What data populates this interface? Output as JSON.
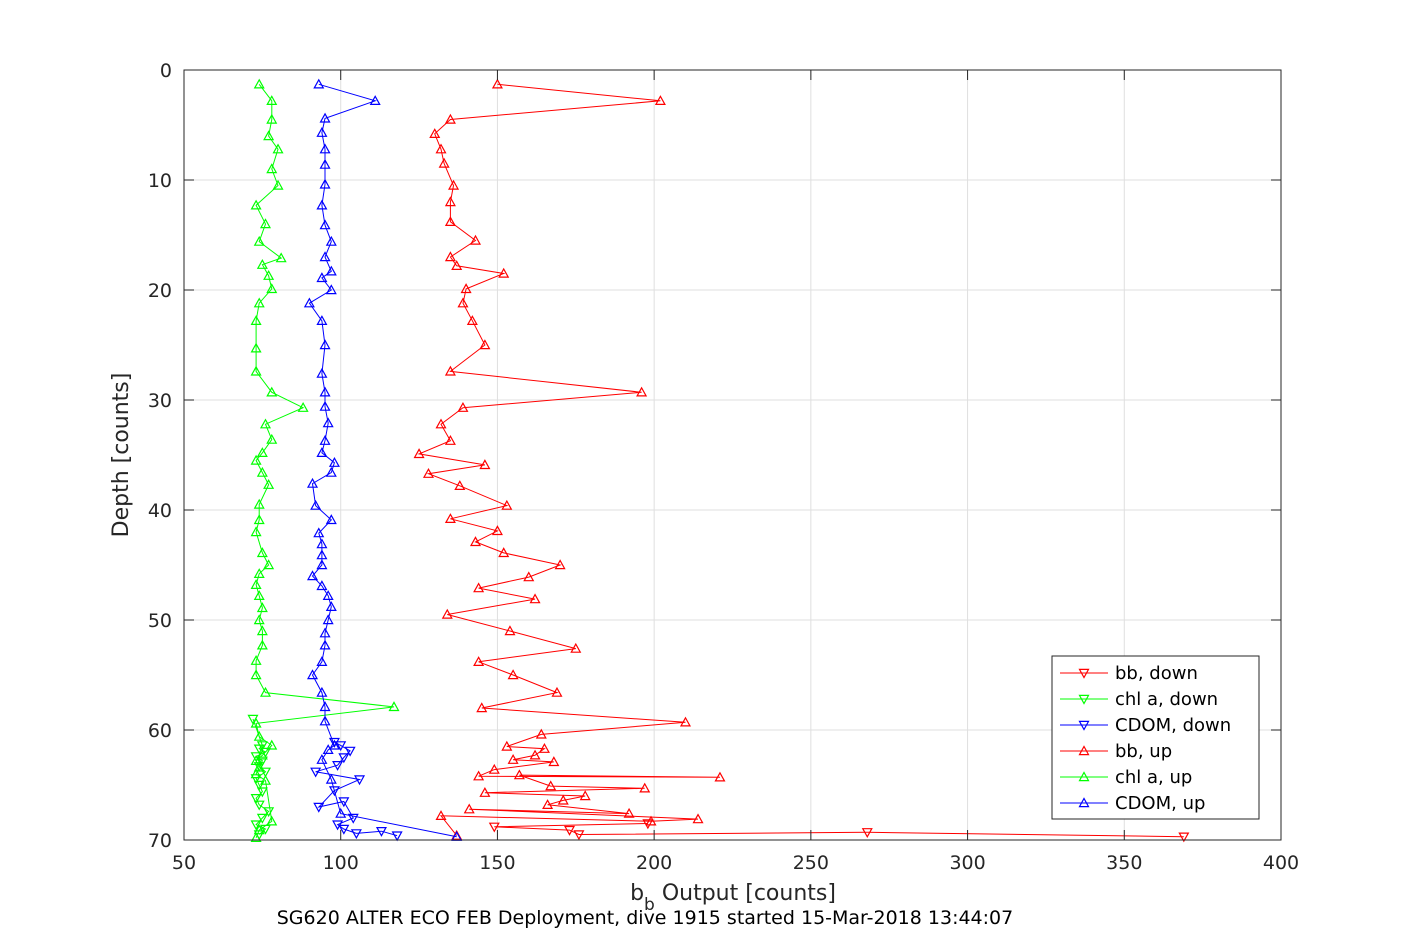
{
  "chart_data": {
    "type": "line",
    "caption": "SG620 ALTER ECO FEB Deployment, dive 1915 started 15-Mar-2018 13:44:07",
    "xlabel_main": "b",
    "xlabel_sub": "b",
    "xlabel_rest": " Output [counts]",
    "ylabel": "Depth [counts]",
    "xlim": [
      50,
      400
    ],
    "ylim": [
      0,
      70
    ],
    "y_reversed": true,
    "grid": true,
    "legend_position": "lower-right",
    "x_ticks": [
      "50",
      "100",
      "150",
      "200",
      "250",
      "300",
      "350",
      "400"
    ],
    "y_ticks": [
      "0",
      "10",
      "20",
      "30",
      "40",
      "50",
      "60",
      "70"
    ],
    "series": [
      {
        "name": "bb, down",
        "color": "#ff0000",
        "marker": "triangle-down",
        "x": [
          369,
          268,
          176,
          173,
          149,
          198
        ],
        "y": [
          69.7,
          69.3,
          69.5,
          69.1,
          68.8,
          68.5
        ]
      },
      {
        "name": "chl a, down",
        "color": "#00ff00",
        "marker": "triangle-down",
        "x": [
          74,
          76,
          73,
          75,
          77,
          74,
          73,
          75,
          74,
          73,
          76,
          74,
          75,
          73,
          76,
          74,
          75,
          72
        ],
        "y": [
          69.5,
          69.0,
          68.6,
          68.0,
          67.4,
          66.8,
          66.2,
          65.6,
          65.0,
          64.4,
          63.8,
          63.3,
          62.8,
          62.4,
          62.0,
          61.7,
          61.4,
          59.0
        ]
      },
      {
        "name": "CDOM, down",
        "color": "#0000ff",
        "marker": "triangle-down",
        "x": [
          118,
          113,
          105,
          101,
          99,
          104,
          101,
          93,
          98,
          106,
          92,
          99,
          101,
          103,
          100,
          98
        ],
        "y": [
          69.6,
          69.2,
          69.4,
          69.0,
          68.6,
          68.0,
          66.5,
          67.0,
          65.5,
          64.5,
          63.8,
          63.2,
          62.5,
          61.9,
          61.4,
          61.1
        ]
      },
      {
        "name": "bb, up",
        "color": "#ff0000",
        "marker": "triangle-up",
        "x": [
          150,
          202,
          135,
          130,
          132,
          133,
          136,
          135,
          135,
          143,
          135,
          137,
          152,
          140,
          139,
          142,
          146,
          135,
          196,
          139,
          132,
          135,
          125,
          146,
          128,
          138,
          153,
          135,
          150,
          143,
          152,
          170,
          160,
          144,
          162,
          134,
          154,
          175,
          144,
          155,
          169,
          145,
          210,
          164,
          153,
          165,
          162,
          155,
          168,
          149,
          144,
          221,
          157,
          167,
          197,
          146,
          178,
          171,
          166,
          192,
          141,
          214,
          199,
          132,
          137
        ],
        "y": [
          1.3,
          2.8,
          4.5,
          5.8,
          7.2,
          8.5,
          10.5,
          12.0,
          13.8,
          15.5,
          17.0,
          17.8,
          18.5,
          19.9,
          21.2,
          22.8,
          25.0,
          27.4,
          29.3,
          30.7,
          32.2,
          33.7,
          34.9,
          35.9,
          36.7,
          37.8,
          39.6,
          40.8,
          41.9,
          42.9,
          43.9,
          45.0,
          46.1,
          47.1,
          48.1,
          49.5,
          51.0,
          52.6,
          53.8,
          55.0,
          56.6,
          58.0,
          59.3,
          60.4,
          61.5,
          61.7,
          62.3,
          62.7,
          62.9,
          63.6,
          64.2,
          64.3,
          64.1,
          65.1,
          65.3,
          65.7,
          66.0,
          66.4,
          66.8,
          67.6,
          67.2,
          68.1,
          68.3,
          67.8,
          69.6
        ]
      },
      {
        "name": "chl a, up",
        "color": "#00ff00",
        "marker": "triangle-up",
        "x": [
          74,
          78,
          78,
          77,
          80,
          78,
          80,
          73,
          76,
          74,
          81,
          75,
          77,
          78,
          74,
          73,
          73,
          73,
          78,
          88,
          76,
          78,
          75,
          73,
          75,
          77,
          74,
          74,
          73,
          75,
          77,
          74,
          73,
          74,
          75,
          74,
          75,
          75,
          73,
          73,
          76,
          117,
          73,
          74,
          78,
          75,
          73,
          74,
          73,
          76,
          78,
          74,
          73
        ],
        "y": [
          1.3,
          2.8,
          4.5,
          6.0,
          7.2,
          9.0,
          10.5,
          12.3,
          14.0,
          15.6,
          17.1,
          17.7,
          18.7,
          19.9,
          21.2,
          22.8,
          25.3,
          27.4,
          29.3,
          30.7,
          32.2,
          33.6,
          34.8,
          35.5,
          36.6,
          37.7,
          39.5,
          40.9,
          42.0,
          43.9,
          45.0,
          45.8,
          46.8,
          47.8,
          48.9,
          50.0,
          51.0,
          52.3,
          53.7,
          55.0,
          56.6,
          57.9,
          59.4,
          60.6,
          61.4,
          62.3,
          62.8,
          63.4,
          64.0,
          64.6,
          68.3,
          69.1,
          69.8
        ]
      },
      {
        "name": "CDOM, up",
        "color": "#0000ff",
        "marker": "triangle-up",
        "x": [
          93,
          111,
          95,
          94,
          95,
          95,
          95,
          94,
          95,
          97,
          95,
          97,
          94,
          97,
          90,
          94,
          95,
          94,
          95,
          95,
          96,
          95,
          94,
          98,
          97,
          91,
          92,
          97,
          93,
          94,
          94,
          94,
          91,
          94,
          96,
          97,
          96,
          95,
          95,
          94,
          91,
          94,
          95,
          95,
          98,
          96,
          94,
          97,
          100,
          137
        ],
        "y": [
          1.3,
          2.8,
          4.4,
          5.7,
          7.2,
          8.6,
          10.4,
          12.3,
          14.1,
          15.6,
          17.0,
          18.3,
          18.9,
          20.0,
          21.2,
          22.8,
          25.0,
          27.6,
          29.3,
          30.6,
          32.1,
          33.7,
          34.8,
          35.7,
          36.6,
          37.6,
          39.6,
          40.9,
          42.1,
          43.1,
          44.1,
          45.0,
          46.0,
          46.9,
          47.8,
          48.8,
          50.0,
          51.2,
          52.3,
          53.8,
          55.0,
          56.6,
          57.9,
          59.2,
          61.4,
          61.8,
          62.7,
          64.5,
          67.6,
          69.7
        ]
      }
    ]
  }
}
